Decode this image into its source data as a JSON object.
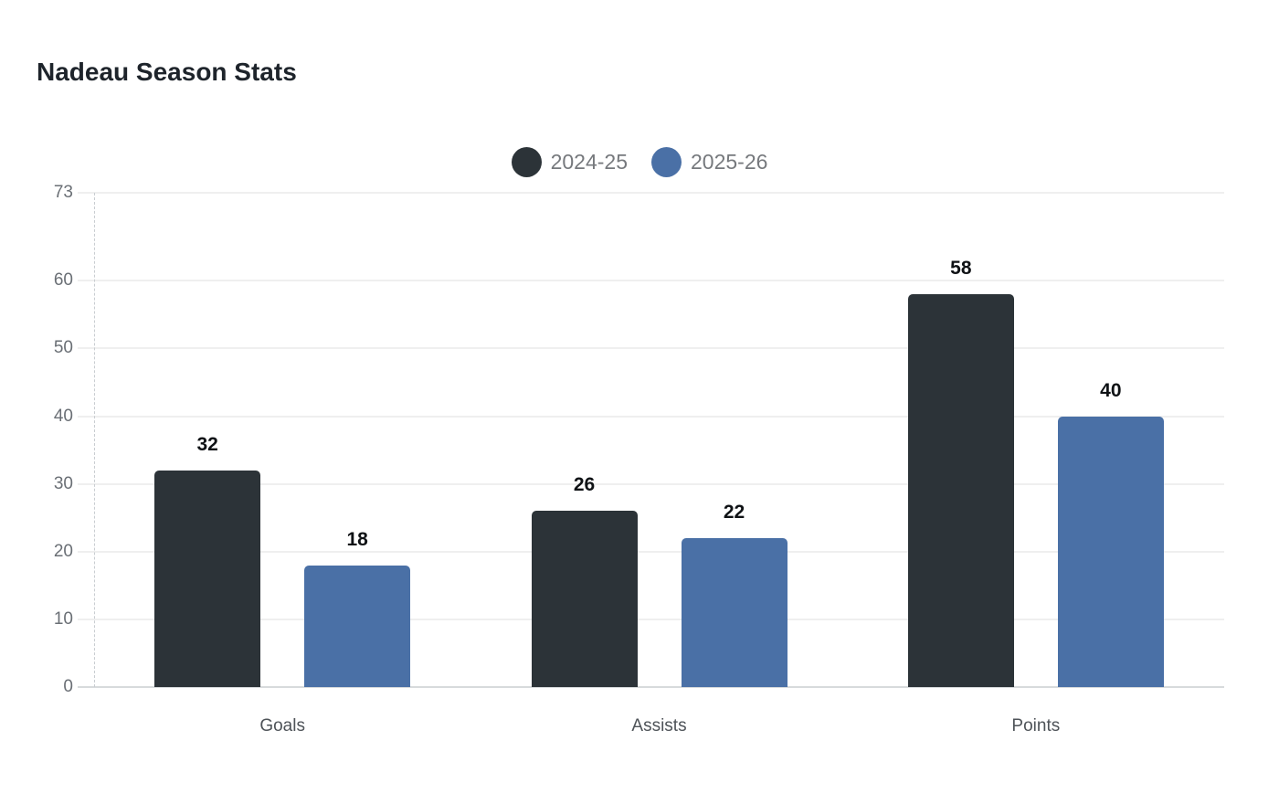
{
  "chart_data": {
    "type": "bar",
    "title": "Nadeau Season Stats",
    "categories": [
      "Goals",
      "Assists",
      "Points"
    ],
    "series": [
      {
        "name": "2024-25",
        "color": "#2c3338",
        "values": [
          32,
          26,
          58
        ]
      },
      {
        "name": "2025-26",
        "color": "#4a70a6",
        "values": [
          18,
          22,
          40
        ]
      }
    ],
    "value_labels": [
      [
        "32",
        "26",
        "58"
      ],
      [
        "18",
        "22",
        "40"
      ]
    ],
    "yticks": [
      "0",
      "10",
      "20",
      "30",
      "40",
      "50",
      "60",
      "73"
    ],
    "ytick_values": [
      0,
      10,
      20,
      30,
      40,
      50,
      60,
      73
    ],
    "ylim": [
      0,
      73
    ],
    "xlabel": "",
    "ylabel": "",
    "grid": true,
    "legend_position": "top-center",
    "colors": {
      "gridline": "#efefef",
      "zero_line": "#d7dadc",
      "axis_dashed_line": "#c9cdd1",
      "title_text": "#1e242b",
      "legend_text": "#76797d",
      "ytick_text": "#6a6f75",
      "xlabel_text": "#4e5358",
      "value_label_text": "#0f1215",
      "background": "#ffffff"
    }
  }
}
